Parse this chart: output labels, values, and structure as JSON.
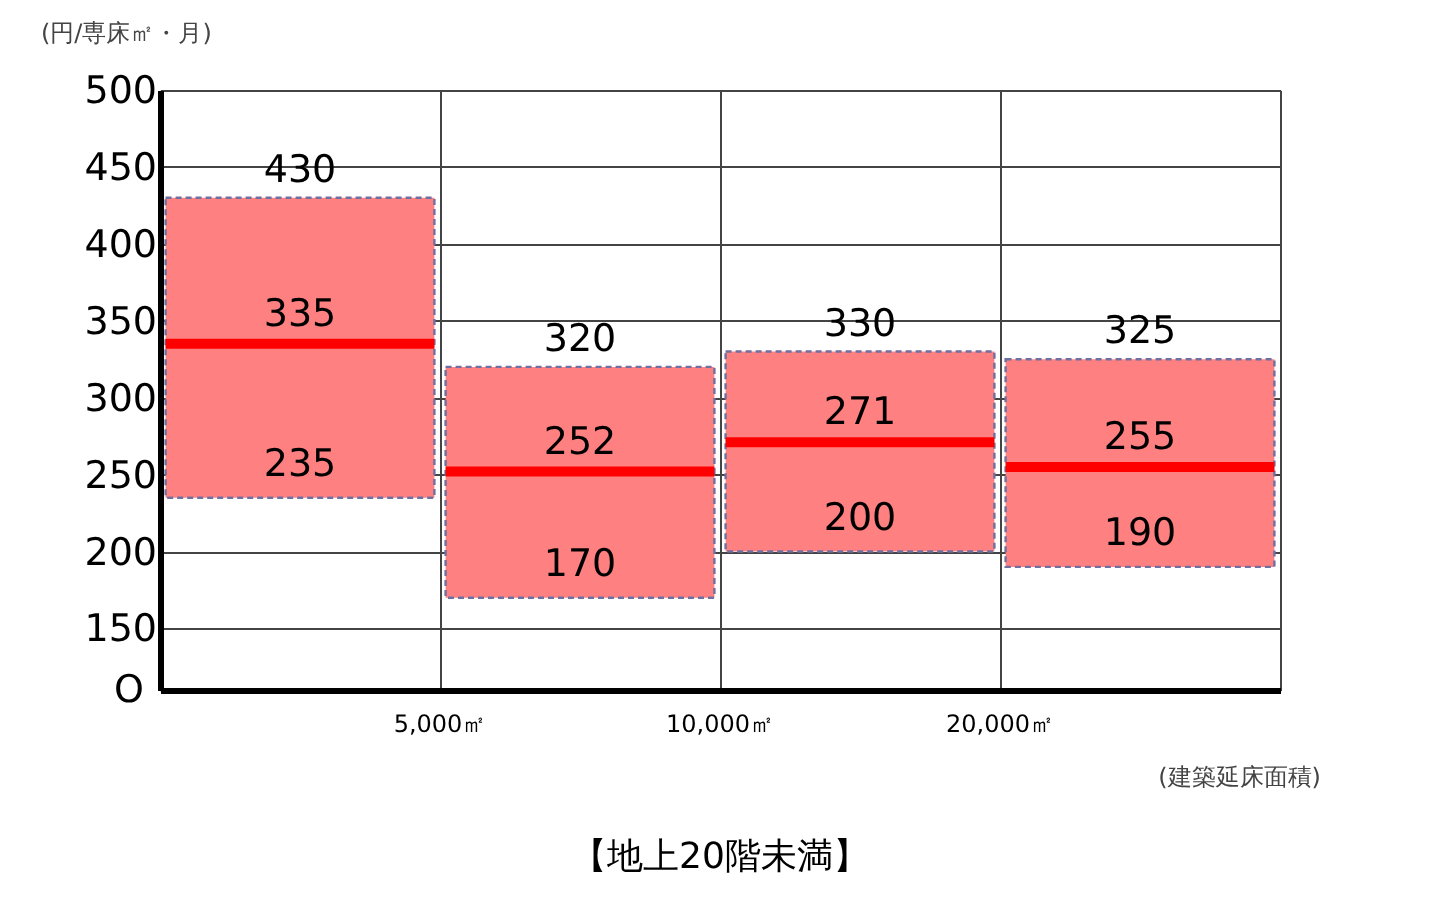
{
  "chart_data": {
    "type": "box",
    "title": "【地上20階未満】",
    "ylabel": "(円/専床㎡・月)",
    "xlabel": "(建築延床面積)",
    "categories": [
      null,
      null,
      null,
      null
    ],
    "boxes": [
      {
        "low": 235,
        "q1": 235,
        "median": 335,
        "q3": 430,
        "high": 430
      },
      {
        "low": 170,
        "q1": 170,
        "median": 252,
        "q3": 320,
        "high": 320
      },
      {
        "low": 200,
        "q1": 200,
        "median": 271,
        "q3": 330,
        "high": 330
      },
      {
        "low": 190,
        "q1": 190,
        "median": 255,
        "q3": 325,
        "high": 325
      }
    ],
    "color": "#ff8080",
    "ylim": [
      110,
      500
    ],
    "yticks": [
      150,
      200,
      250,
      300,
      350,
      400,
      450,
      500
    ],
    "grid": true,
    "annotations": [
      "5,000㎡",
      "10,000㎡",
      "20,000㎡",
      "O",
      {
        "text": "430",
        "y": 430
      },
      {
        "text": "335",
        "y": 335
      },
      {
        "text": "235",
        "y": 235
      },
      {
        "text": "320",
        "y": 320
      },
      {
        "text": "252",
        "y": 252
      },
      {
        "text": "170",
        "y": 170
      },
      {
        "text": "330",
        "y": 330
      },
      {
        "text": "271",
        "y": 271
      },
      {
        "text": "200",
        "y": 200
      },
      {
        "text": "325",
        "y": 325
      },
      {
        "text": "255",
        "y": 255
      },
      {
        "text": "190",
        "y": 190
      }
    ]
  }
}
